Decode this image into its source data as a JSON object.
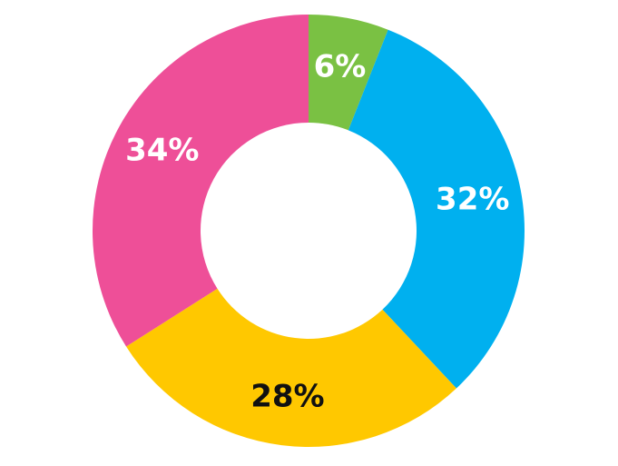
{
  "chart_data": {
    "type": "pie",
    "variant": "donut",
    "legend": "none",
    "slices": [
      {
        "label": "6%",
        "value": 6,
        "color": "#7ac143",
        "label_color": "#ffffff"
      },
      {
        "label": "32%",
        "value": 32,
        "color": "#00b0ef",
        "label_color": "#ffffff"
      },
      {
        "label": "28%",
        "value": 28,
        "color": "#ffc800",
        "label_color": "#111111"
      },
      {
        "label": "34%",
        "value": 34,
        "color": "#ee4f98",
        "label_color": "#ffffff"
      }
    ]
  }
}
